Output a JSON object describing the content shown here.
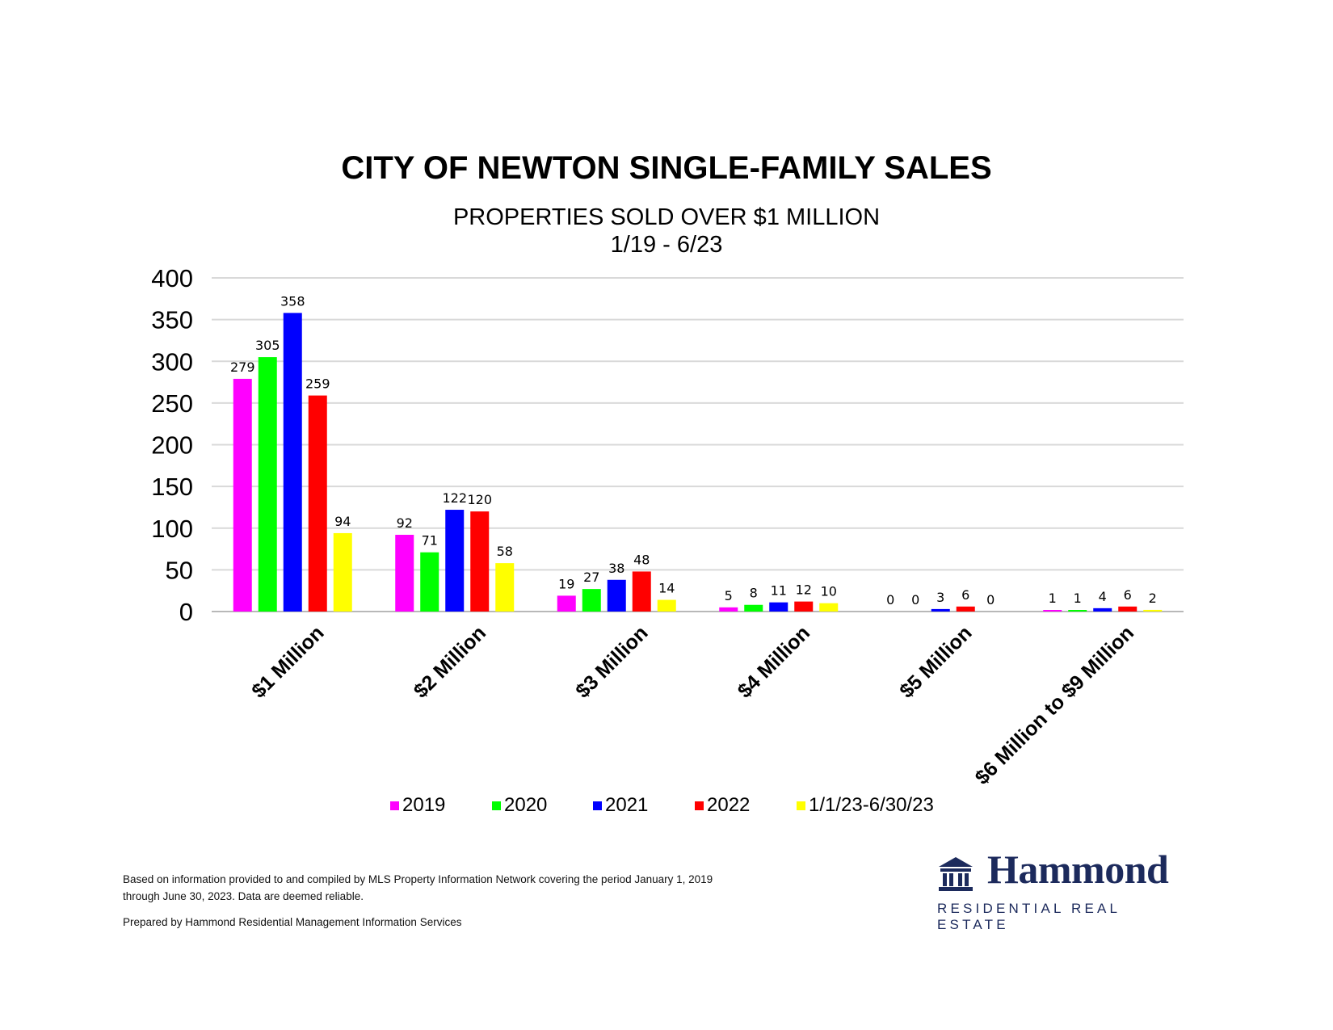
{
  "chart_data": {
    "type": "bar",
    "title": "CITY OF NEWTON SINGLE-FAMILY SALES",
    "subtitle_line1": "PROPERTIES SOLD OVER $1 MILLION",
    "subtitle_line2": "1/19 - 6/23",
    "xlabel": "",
    "ylabel": "",
    "ylim": [
      0,
      400
    ],
    "yticks": [
      0,
      50,
      100,
      150,
      200,
      250,
      300,
      350,
      400
    ],
    "grid": true,
    "legend_position": "bottom",
    "categories": [
      "$1 Million",
      "$2 Million",
      "$3 Million",
      "$4 Million",
      "$5 Million",
      "$6 Million to $9 Million"
    ],
    "series": [
      {
        "name": "2019",
        "color": "#ff00ff",
        "values": [
          279,
          92,
          19,
          5,
          0,
          1
        ]
      },
      {
        "name": "2020",
        "color": "#00ff00",
        "values": [
          305,
          71,
          27,
          8,
          0,
          1
        ]
      },
      {
        "name": "2021",
        "color": "#0000ff",
        "values": [
          358,
          122,
          38,
          11,
          3,
          4
        ]
      },
      {
        "name": "2022",
        "color": "#ff0000",
        "values": [
          259,
          120,
          48,
          12,
          6,
          6
        ]
      },
      {
        "name": "1/1/23-6/30/23",
        "color": "#ffff00",
        "values": [
          94,
          58,
          14,
          10,
          0,
          2
        ]
      }
    ]
  },
  "footer": {
    "source_line1": "Based on information provided to and compiled by MLS Property Information Network covering the period January 1, 2019",
    "source_line2": "through June 30, 2023. Data are deemed reliable.",
    "prepared_by": "Prepared by Hammond Residential Management Information Services"
  },
  "logo": {
    "name": "Hammond",
    "tagline": "RESIDENTIAL REAL ESTATE",
    "brand_color": "#1c2a5c",
    "icon": "building-icon"
  }
}
